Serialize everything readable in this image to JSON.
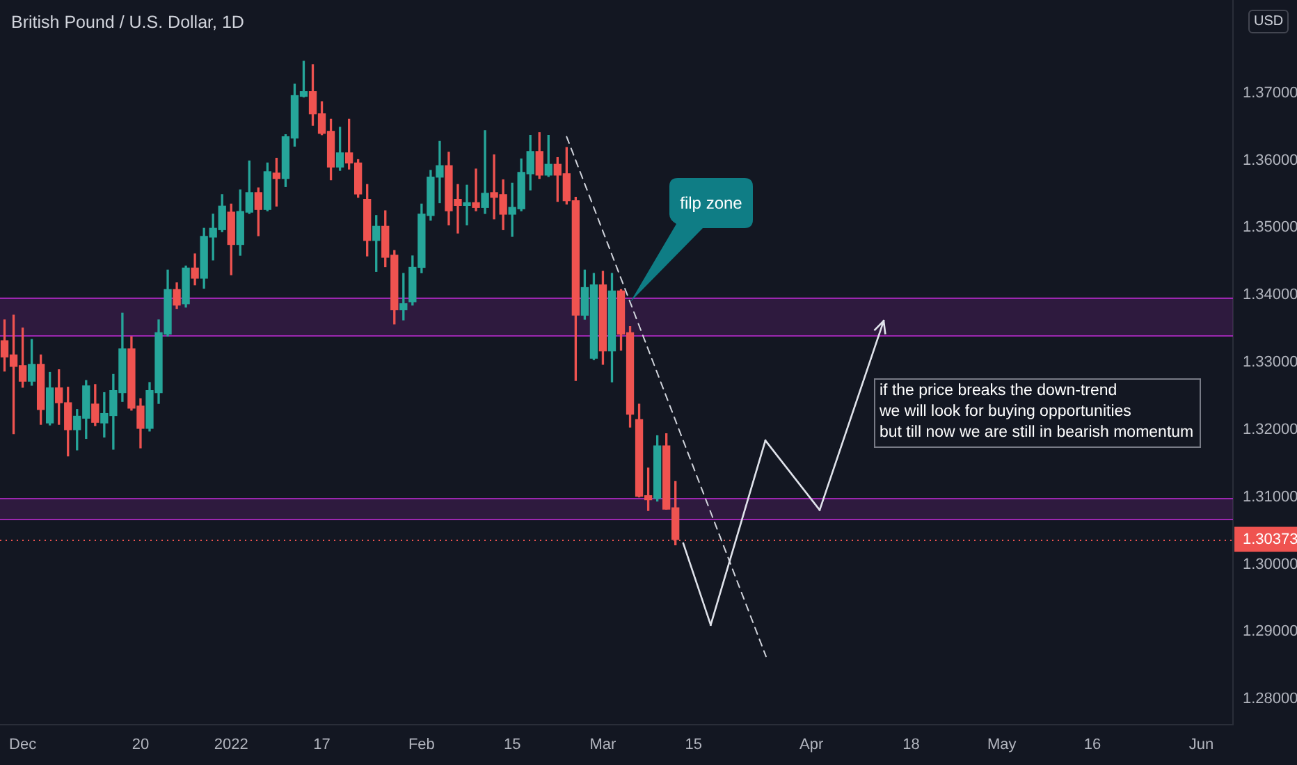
{
  "chart_data": {
    "type": "candlestick",
    "title": "British Pound / U.S. Dollar, 1D",
    "ylabel": "USD",
    "categories": [
      null,
      null,
      "Dec",
      null,
      null,
      null,
      null,
      null,
      null,
      null,
      null,
      null,
      null,
      null,
      null,
      "20",
      null,
      null,
      null,
      null,
      null,
      null,
      null,
      null,
      null,
      "2022",
      null,
      null,
      null,
      null,
      null,
      null,
      null,
      null,
      null,
      "17",
      null,
      null,
      null,
      null,
      null,
      null,
      null,
      null,
      null,
      null,
      "Feb",
      null,
      null,
      null,
      null,
      null,
      null,
      null,
      null,
      null,
      "15",
      null,
      null,
      null,
      null,
      null,
      null,
      null,
      null,
      null,
      "Mar",
      null,
      null,
      null,
      null,
      null,
      null,
      null,
      null,
      null,
      "15",
      null,
      null,
      null,
      null,
      null,
      null,
      null,
      null,
      null,
      null,
      null,
      null,
      "Apr",
      null,
      null,
      null,
      null,
      null,
      null,
      null,
      null,
      null,
      null,
      "18",
      null,
      null,
      null,
      null,
      null,
      null,
      null,
      null,
      null,
      "May",
      null,
      null,
      null,
      null,
      null,
      null,
      null,
      null,
      null,
      "16",
      null,
      null,
      null,
      null,
      null,
      null,
      null,
      null,
      null,
      null,
      null,
      "Jun",
      null,
      null,
      null
    ],
    "ohlc": [
      [
        1.3332,
        1.3363,
        1.3287,
        1.3308
      ],
      [
        1.3311,
        1.337,
        1.3194,
        1.3294
      ],
      [
        1.3295,
        1.3351,
        1.3263,
        1.3272
      ],
      [
        1.3272,
        1.3334,
        1.3266,
        1.3297
      ],
      [
        1.3297,
        1.3311,
        1.3208,
        1.323
      ],
      [
        1.321,
        1.3285,
        1.3207,
        1.3262
      ],
      [
        1.3262,
        1.3289,
        1.3208,
        1.324
      ],
      [
        1.324,
        1.3263,
        1.3161,
        1.32
      ],
      [
        1.32,
        1.323,
        1.317,
        1.322
      ],
      [
        1.3217,
        1.3273,
        1.3187,
        1.3265
      ],
      [
        1.3238,
        1.3267,
        1.3206,
        1.3211
      ],
      [
        1.321,
        1.3255,
        1.3189,
        1.3224
      ],
      [
        1.3221,
        1.3282,
        1.3171,
        1.3258
      ],
      [
        1.3255,
        1.3373,
        1.3242,
        1.332
      ],
      [
        1.332,
        1.3338,
        1.3229,
        1.3232
      ],
      [
        1.3235,
        1.3246,
        1.3173,
        1.3202
      ],
      [
        1.3202,
        1.327,
        1.3198,
        1.3258
      ],
      [
        1.3255,
        1.3363,
        1.3239,
        1.3344
      ],
      [
        1.3342,
        1.3437,
        1.3339,
        1.3408
      ],
      [
        1.3408,
        1.3418,
        1.338,
        1.3385
      ],
      [
        1.3387,
        1.3443,
        1.3382,
        1.344
      ],
      [
        1.344,
        1.3461,
        1.3415,
        1.3425
      ],
      [
        1.3425,
        1.3499,
        1.341,
        1.3487
      ],
      [
        1.3486,
        1.352,
        1.3452,
        1.3499
      ],
      [
        1.3497,
        1.3549,
        1.3494,
        1.3532
      ],
      [
        1.3523,
        1.3535,
        1.343,
        1.3475
      ],
      [
        1.3475,
        1.3556,
        1.3459,
        1.3524
      ],
      [
        1.3523,
        1.3599,
        1.3521,
        1.3552
      ],
      [
        1.3552,
        1.3559,
        1.3488,
        1.3527
      ],
      [
        1.3527,
        1.3596,
        1.3525,
        1.3583
      ],
      [
        1.3581,
        1.3603,
        1.3532,
        1.3573
      ],
      [
        1.3573,
        1.3638,
        1.3561,
        1.3635
      ],
      [
        1.3633,
        1.3713,
        1.3621,
        1.3696
      ],
      [
        1.3695,
        1.3747,
        1.3694,
        1.3702
      ],
      [
        1.3702,
        1.3742,
        1.3652,
        1.3669
      ],
      [
        1.3669,
        1.3687,
        1.3638,
        1.364
      ],
      [
        1.3643,
        1.3661,
        1.3571,
        1.359
      ],
      [
        1.359,
        1.3649,
        1.3585,
        1.3611
      ],
      [
        1.3611,
        1.3661,
        1.3587,
        1.3596
      ],
      [
        1.3596,
        1.3601,
        1.3545,
        1.355
      ],
      [
        1.3542,
        1.3564,
        1.3458,
        1.3481
      ],
      [
        1.3481,
        1.3518,
        1.3435,
        1.3502
      ],
      [
        1.3502,
        1.3525,
        1.3442,
        1.3456
      ],
      [
        1.3459,
        1.3466,
        1.3357,
        1.3378
      ],
      [
        1.3378,
        1.3432,
        1.3363,
        1.3387
      ],
      [
        1.339,
        1.3458,
        1.3385,
        1.3441
      ],
      [
        1.3441,
        1.3535,
        1.3433,
        1.352
      ],
      [
        1.3518,
        1.3585,
        1.3511,
        1.3575
      ],
      [
        1.3575,
        1.3628,
        1.3537,
        1.3592
      ],
      [
        1.3592,
        1.3612,
        1.3504,
        1.3525
      ],
      [
        1.3542,
        1.3564,
        1.3492,
        1.3533
      ],
      [
        1.3533,
        1.3563,
        1.3504,
        1.3537
      ],
      [
        1.3537,
        1.3587,
        1.3525,
        1.353
      ],
      [
        1.353,
        1.3644,
        1.3521,
        1.3551
      ],
      [
        1.3552,
        1.3608,
        1.3513,
        1.3545
      ],
      [
        1.3549,
        1.3571,
        1.3497,
        1.352
      ],
      [
        1.352,
        1.3566,
        1.3487,
        1.353
      ],
      [
        1.3528,
        1.3602,
        1.3525,
        1.3582
      ],
      [
        1.358,
        1.3637,
        1.3556,
        1.3613
      ],
      [
        1.3613,
        1.3641,
        1.3573,
        1.3578
      ],
      [
        1.3578,
        1.3637,
        1.3576,
        1.3594
      ],
      [
        1.3594,
        1.3604,
        1.3539,
        1.3578
      ],
      [
        1.358,
        1.3619,
        1.3535,
        1.354
      ],
      [
        1.354,
        1.3545,
        1.3273,
        1.337
      ],
      [
        1.337,
        1.3437,
        1.3364,
        1.3411
      ],
      [
        1.3306,
        1.3432,
        1.3304,
        1.3415
      ],
      [
        1.3415,
        1.3435,
        1.3297,
        1.3317
      ],
      [
        1.3317,
        1.3432,
        1.3271,
        1.3406
      ],
      [
        1.3406,
        1.3408,
        1.3318,
        1.3342
      ],
      [
        1.3344,
        1.3353,
        1.3204,
        1.3223
      ],
      [
        1.3215,
        1.3238,
        1.31,
        1.3101
      ],
      [
        1.3102,
        1.3143,
        1.308,
        1.3096
      ],
      [
        1.3098,
        1.3191,
        1.3094,
        1.3176
      ],
      [
        1.3176,
        1.3194,
        1.3082,
        1.3082
      ],
      [
        1.3084,
        1.3123,
        1.3029,
        1.3037
      ],
      null,
      null,
      null,
      null,
      null,
      null,
      null,
      null,
      null,
      null,
      null,
      null,
      null,
      null,
      null,
      null,
      null,
      null,
      null,
      null,
      null,
      null,
      null,
      null,
      null,
      null,
      null,
      null,
      null,
      null,
      null,
      null,
      null,
      null,
      null,
      null,
      null,
      null,
      null,
      null,
      null,
      null,
      null,
      null,
      null,
      null,
      null,
      null,
      null,
      null,
      null,
      null,
      null,
      null,
      null,
      null,
      null,
      null,
      null,
      null,
      null
    ],
    "colors": [
      "#ef5350",
      "#ef5350",
      "#ef5350",
      "#26a69a",
      "#ef5350",
      "#26a69a",
      "#ef5350",
      "#ef5350",
      "#26a69a",
      "#26a69a",
      "#ef5350",
      "#26a69a",
      "#26a69a",
      "#26a69a",
      "#ef5350",
      "#ef5350",
      "#26a69a",
      "#26a69a",
      "#26a69a",
      "#ef5350",
      "#26a69a",
      "#ef5350",
      "#26a69a",
      "#26a69a",
      "#26a69a",
      "#ef5350",
      "#26a69a",
      "#26a69a",
      "#ef5350",
      "#26a69a",
      "#ef5350",
      "#26a69a",
      "#26a69a",
      "#26a69a",
      "#ef5350",
      "#ef5350",
      "#ef5350",
      "#26a69a",
      "#ef5350",
      "#ef5350",
      "#ef5350",
      "#26a69a",
      "#ef5350",
      "#ef5350",
      "#26a69a",
      "#26a69a",
      "#26a69a",
      "#26a69a",
      "#26a69a",
      "#ef5350",
      "#ef5350",
      "#26a69a",
      "#ef5350",
      "#26a69a",
      "#ef5350",
      "#ef5350",
      "#26a69a",
      "#26a69a",
      "#26a69a",
      "#ef5350",
      "#26a69a",
      "#ef5350",
      "#ef5350",
      "#ef5350",
      "#26a69a",
      "#26a69a",
      "#ef5350",
      "#26a69a",
      "#ef5350",
      "#ef5350",
      "#ef5350",
      "#ef5350",
      "#26a69a",
      "#ef5350",
      "#ef5350",
      null,
      null,
      null,
      null,
      null,
      null,
      null,
      null,
      null,
      null,
      null,
      null,
      null,
      null,
      null,
      null,
      null,
      null,
      null,
      null,
      null,
      null,
      null,
      null,
      null,
      null,
      null,
      null,
      null,
      null,
      null,
      null,
      null,
      null,
      null,
      null,
      null,
      null,
      null,
      null,
      null,
      null,
      null,
      null,
      null,
      null,
      null,
      null,
      null,
      null,
      null,
      null,
      null,
      null,
      null,
      null,
      null,
      null,
      null,
      null,
      null
    ],
    "series": [
      {
        "type": "line",
        "color": "#d1d4dc",
        "line_style": "dashed",
        "values": [
          null,
          null,
          null,
          null,
          null,
          null,
          null,
          null,
          null,
          null,
          null,
          null,
          null,
          null,
          null,
          null,
          null,
          null,
          null,
          null,
          null,
          null,
          null,
          null,
          null,
          null,
          null,
          null,
          null,
          null,
          null,
          null,
          null,
          null,
          null,
          null,
          null,
          null,
          null,
          null,
          null,
          null,
          null,
          null,
          null,
          null,
          null,
          null,
          null,
          null,
          null,
          null,
          null,
          null,
          null,
          null,
          null,
          null,
          null,
          null,
          null,
          null,
          1.3635,
          null,
          null,
          null,
          null,
          null,
          null,
          null,
          null,
          null,
          null,
          null,
          null,
          null,
          null,
          null,
          null,
          null,
          null,
          null,
          null,
          null,
          1.2863,
          null,
          null,
          null,
          null,
          null,
          null,
          null,
          null,
          null,
          null,
          null,
          null,
          null,
          null,
          null,
          null,
          null,
          null,
          null,
          null,
          null,
          null,
          null,
          null,
          null,
          null,
          null,
          null,
          null,
          null,
          null,
          null,
          null,
          null,
          null,
          null,
          null,
          null,
          null,
          null,
          null,
          null,
          null,
          null,
          null,
          null,
          null,
          null,
          null,
          null,
          null
        ]
      }
    ],
    "ylim": [
      1.2762,
      1.3838
    ],
    "yticks": [
      {
        "value": 1.28,
        "label": "1.28000"
      },
      {
        "value": 1.29,
        "label": "1.29000"
      },
      {
        "value": 1.3,
        "label": "1.30000"
      },
      {
        "value": 1.31,
        "label": "1.31000"
      },
      {
        "value": 1.32,
        "label": "1.32000"
      },
      {
        "value": 1.33,
        "label": "1.33000"
      },
      {
        "value": 1.34,
        "label": "1.34000"
      },
      {
        "value": 1.35,
        "label": "1.35000"
      },
      {
        "value": 1.36,
        "label": "1.36000"
      },
      {
        "value": 1.37,
        "label": "1.37000"
      }
    ],
    "ref_lines": [
      {
        "axis": "y",
        "value": 1.30373,
        "label": "1.30373",
        "color": "#ef5350",
        "line_style": "dotted"
      }
    ],
    "bands": [
      {
        "axis": "y",
        "from": 1.334,
        "to": 1.3397,
        "color": "#9c27b0"
      },
      {
        "axis": "y",
        "from": 1.3067,
        "to": 1.3098,
        "color": "#9c27b0"
      }
    ],
    "annotations": [
      "filp zone",
      "if the price breaks the down-trend\nwe will look for buying opportunities\nbut till now we are still in bearish momentum"
    ],
    "grid": false,
    "legend": false
  }
}
